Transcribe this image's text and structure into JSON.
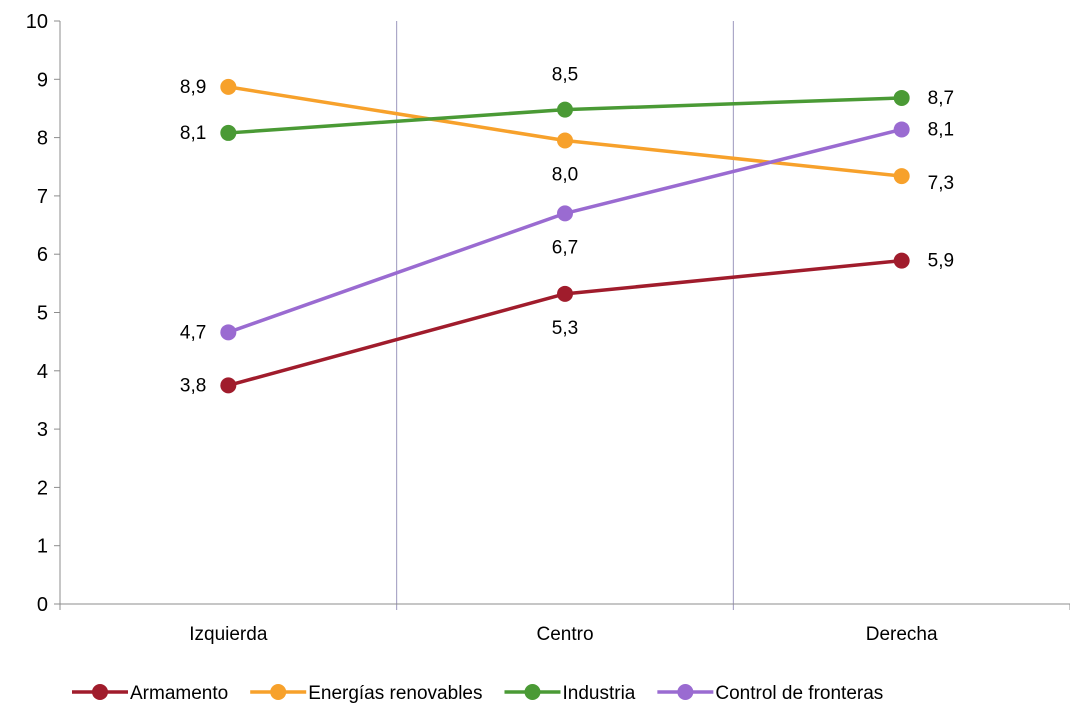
{
  "chart_data": {
    "type": "line",
    "title": "",
    "xlabel": "",
    "ylabel": "",
    "categories": [
      "Izquierda",
      "Centro",
      "Derecha"
    ],
    "ylim": [
      0,
      10
    ],
    "yticks": [
      0,
      1,
      2,
      3,
      4,
      5,
      6,
      7,
      8,
      9,
      10
    ],
    "grid": "vertical separators between categories",
    "legend_position": "bottom",
    "series": [
      {
        "name": "Armamento",
        "color": "#a01c2c",
        "values": [
          3.75,
          5.32,
          5.89
        ],
        "labels": [
          "3,8",
          "5,3",
          "5,9"
        ],
        "label_positions": [
          "left",
          "below",
          "right"
        ]
      },
      {
        "name": "Energías renovables",
        "color": "#f7a12b",
        "values": [
          8.87,
          7.95,
          7.34
        ],
        "labels": [
          "8,9",
          "8,0",
          "7,3"
        ],
        "label_positions": [
          "left",
          "below",
          "right-below"
        ]
      },
      {
        "name": "Industria",
        "color": "#4a9a35",
        "values": [
          8.08,
          8.48,
          8.68
        ],
        "labels": [
          "8,1",
          "8,5",
          "8,7"
        ],
        "label_positions": [
          "left",
          "above",
          "right"
        ]
      },
      {
        "name": "Control de fronteras",
        "color": "#9a6bd1",
        "values": [
          4.66,
          6.7,
          8.14
        ],
        "labels": [
          "4,7",
          "6,7",
          "8,1"
        ],
        "label_positions": [
          "left",
          "below",
          "right"
        ]
      }
    ]
  }
}
